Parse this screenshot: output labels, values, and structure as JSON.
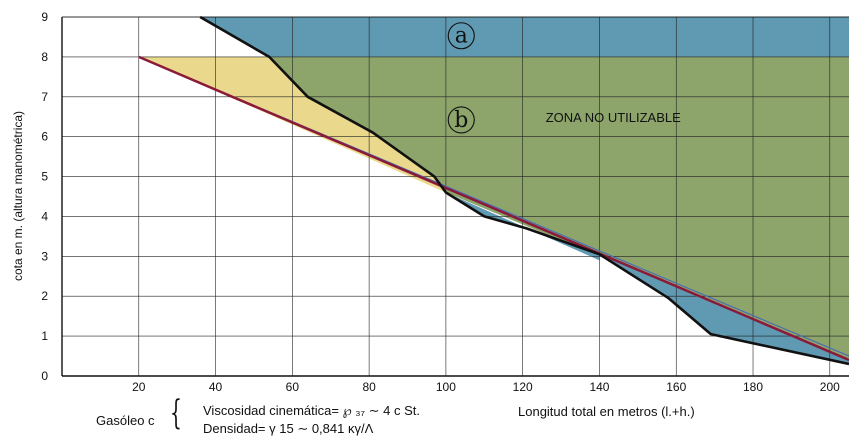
{
  "chart_data": {
    "type": "area",
    "ylabel": "cota en m. (altura  manométrica)",
    "xlabel": "Longitud total en metros (l.+h.)",
    "xlim": [
      0,
      205
    ],
    "ylim": [
      0,
      9
    ],
    "x_ticks": [
      20,
      40,
      60,
      80,
      100,
      120,
      140,
      160,
      180,
      200
    ],
    "y_ticks": [
      0,
      1,
      2,
      3,
      4,
      5,
      6,
      7,
      8,
      9
    ],
    "grid": true,
    "regions": [
      {
        "label": "a",
        "color": "#5f99b2",
        "y_from": 8,
        "y_to": 9
      },
      {
        "label": "b",
        "color": "#8da56b",
        "text": "ZONA NO UTILIZABLE"
      }
    ],
    "series": [
      {
        "color": "#111111",
        "x": [
          36,
          54,
          64,
          81,
          97,
          100,
          110,
          121,
          140,
          158,
          169,
          205
        ],
        "y": [
          9,
          8,
          7,
          6.1,
          5,
          4.6,
          4,
          3.7,
          3.05,
          1.95,
          1.05,
          0.3
        ]
      },
      {
        "color": "#8b1a3a",
        "x": [
          20,
          205
        ],
        "y": [
          8,
          0.4
        ]
      }
    ],
    "yellow_fill_color": "#ead98c",
    "thin_line_color": "#4a6fb0"
  },
  "fuel": {
    "name": "Gasóleo c",
    "viscosity": "Viscosidad cinemática= ℘ ₃₇ ∼ 4 c St.",
    "density": "Densidad= γ 15 ∼ 0,841 κγ/Λ"
  }
}
